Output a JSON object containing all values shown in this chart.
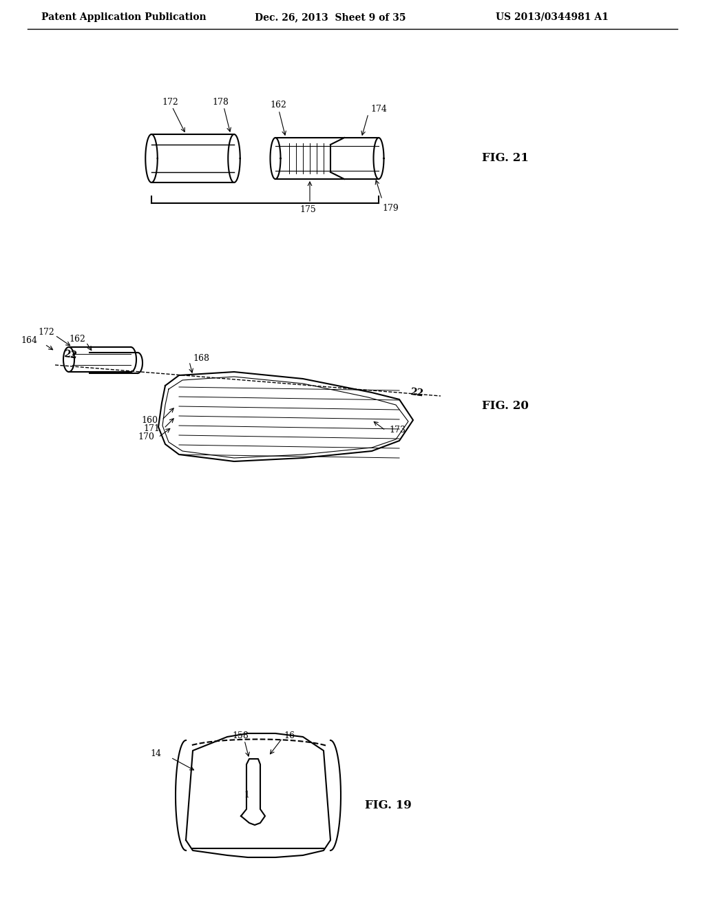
{
  "bg_color": "#ffffff",
  "header_left": "Patent Application Publication",
  "header_center": "Dec. 26, 2013  Sheet 9 of 35",
  "header_right": "US 2013/0344981 A1",
  "fig19_label": "FIG. 19",
  "fig20_label": "FIG. 20",
  "fig21_label": "FIG. 21",
  "line_color": "#000000",
  "line_width": 1.5,
  "font_size_header": 10,
  "font_size_label": 12,
  "font_size_ref": 10
}
